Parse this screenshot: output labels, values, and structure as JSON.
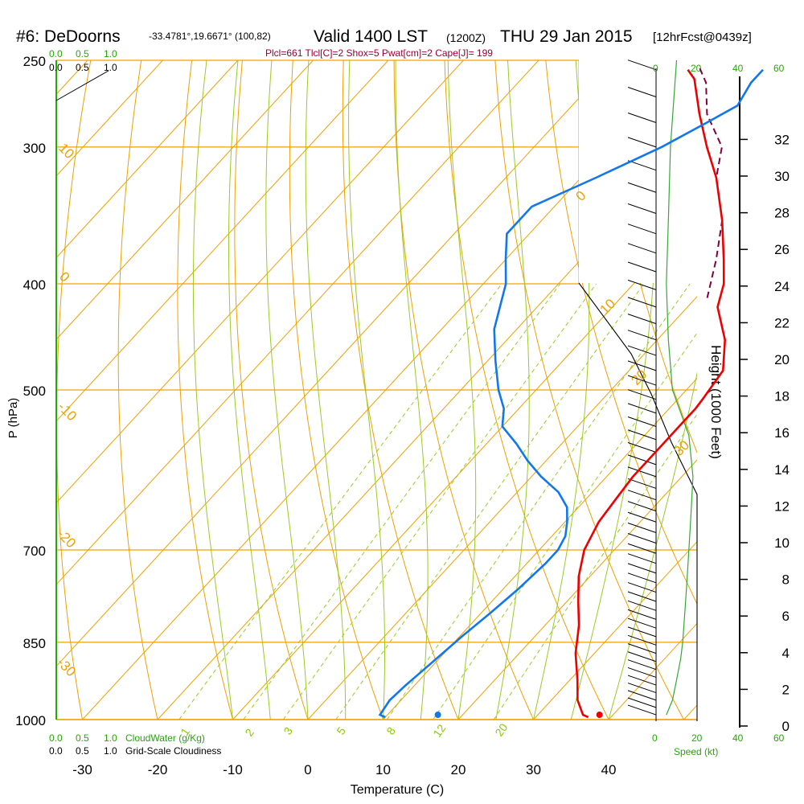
{
  "chart_data": {
    "type": "skew-t",
    "title": {
      "station": "#6: DeDoorns",
      "coords": "-33.4781°,19.6671° (100,82)",
      "valid": "Valid 1400 LST",
      "zulu": "(1200Z)",
      "date": "THU 29 Jan 2015",
      "forecast": "[12hrFcst@0439z]"
    },
    "indices": "Plcl=661 Tlcl[C]=2 Shox=5 Pwat[cm]=2 Cape[J]= 199",
    "xlabel": "Temperature (C)",
    "ylabel": "P (hPa)",
    "y2label": "Height (1000 Feet)",
    "x_ticks": [
      "-30",
      "-20",
      "-10",
      "0",
      "10",
      "20",
      "30",
      "40"
    ],
    "x_tick_values": [
      -30,
      -20,
      -10,
      0,
      10,
      20,
      30,
      40
    ],
    "p_ticks": [
      "250",
      "300",
      "400",
      "500",
      "700",
      "850",
      "1000"
    ],
    "p_tick_values": [
      250,
      300,
      400,
      500,
      700,
      850,
      1000
    ],
    "height_ticks": [
      "0",
      "2",
      "4",
      "6",
      "8",
      "10",
      "12",
      "14",
      "16",
      "18",
      "20",
      "22",
      "24",
      "26",
      "28",
      "30",
      "32"
    ],
    "height_tick_values": [
      0,
      2,
      4,
      6,
      8,
      10,
      12,
      14,
      16,
      18,
      20,
      22,
      24,
      26,
      28,
      30,
      32
    ],
    "cloud_water_ticks": [
      "0.0",
      "0.5",
      "1.0"
    ],
    "cloud_water_label": "CloudWater (g/Kg)",
    "cloudiness_ticks": [
      "0.0",
      "0.5",
      "1.0"
    ],
    "cloudiness_label": "Grid-Scale Cloudiness",
    "speed_ticks": [
      "0",
      "20",
      "40",
      "60"
    ],
    "speed_label": "Speed (kt)",
    "isotherm_labels": [
      "10",
      "0",
      "-10",
      "-20",
      "-30",
      "0",
      "10",
      "20",
      "30"
    ],
    "mixing_ratio_labels": [
      "1",
      "2",
      "3",
      "5",
      "8",
      "12",
      "20"
    ],
    "temperature_profile": {
      "pressure": [
        995,
        990,
        960,
        920,
        870,
        820,
        780,
        740,
        700,
        660,
        630,
        600,
        560,
        540,
        520,
        510,
        480,
        450,
        420,
        400,
        380,
        350,
        320,
        300,
        280,
        260,
        255
      ],
      "temperature": [
        37,
        36,
        33.5,
        31,
        27.5,
        24.5,
        21.5,
        18.5,
        16,
        14.5,
        14,
        13.5,
        13.5,
        13.5,
        13.5,
        13.3,
        12.5,
        9,
        4,
        2,
        -1,
        -6,
        -12,
        -17,
        -22,
        -27,
        -29
      ]
    },
    "dewpoint_profile": {
      "pressure": [
        995,
        990,
        960,
        930,
        900,
        870,
        840,
        800,
        760,
        720,
        700,
        680,
        660,
        640,
        620,
        600,
        580,
        560,
        540,
        520,
        500,
        470,
        440,
        400,
        380,
        360,
        340,
        320,
        300,
        285,
        275,
        262,
        255
      ],
      "dewpoint": [
        10,
        9,
        8.5,
        8.8,
        9.3,
        9.8,
        10.3,
        11.2,
        12,
        12.5,
        12.5,
        11.8,
        10.3,
        8.5,
        5.5,
        1.3,
        -2.5,
        -6,
        -10,
        -12,
        -15,
        -19,
        -23,
        -27,
        -30,
        -33,
        -33,
        -28,
        -23,
        -20,
        -18,
        -19,
        -19
      ]
    },
    "parcel_path": {
      "pressure": [
        412,
        380,
        350,
        320,
        300,
        280,
        262,
        253
      ],
      "temperature": [
        1.5,
        -2,
        -6,
        -12,
        -15,
        -21,
        -25,
        -28
      ]
    },
    "surface_temperature": {
      "pressure": 990,
      "temperature": 38.2
    },
    "surface_dewpoint": {
      "pressure": 990,
      "temperature": 16.7
    },
    "wind_speed_profile": {
      "pressure": [
        990,
        960,
        920,
        880,
        850,
        800,
        750,
        700,
        650,
        600,
        550,
        500,
        450,
        400,
        350,
        300,
        250
      ],
      "speed": [
        5,
        8,
        10,
        12,
        13,
        14,
        15,
        16,
        17,
        18,
        16,
        8,
        6,
        5,
        6,
        7,
        10
      ]
    }
  }
}
